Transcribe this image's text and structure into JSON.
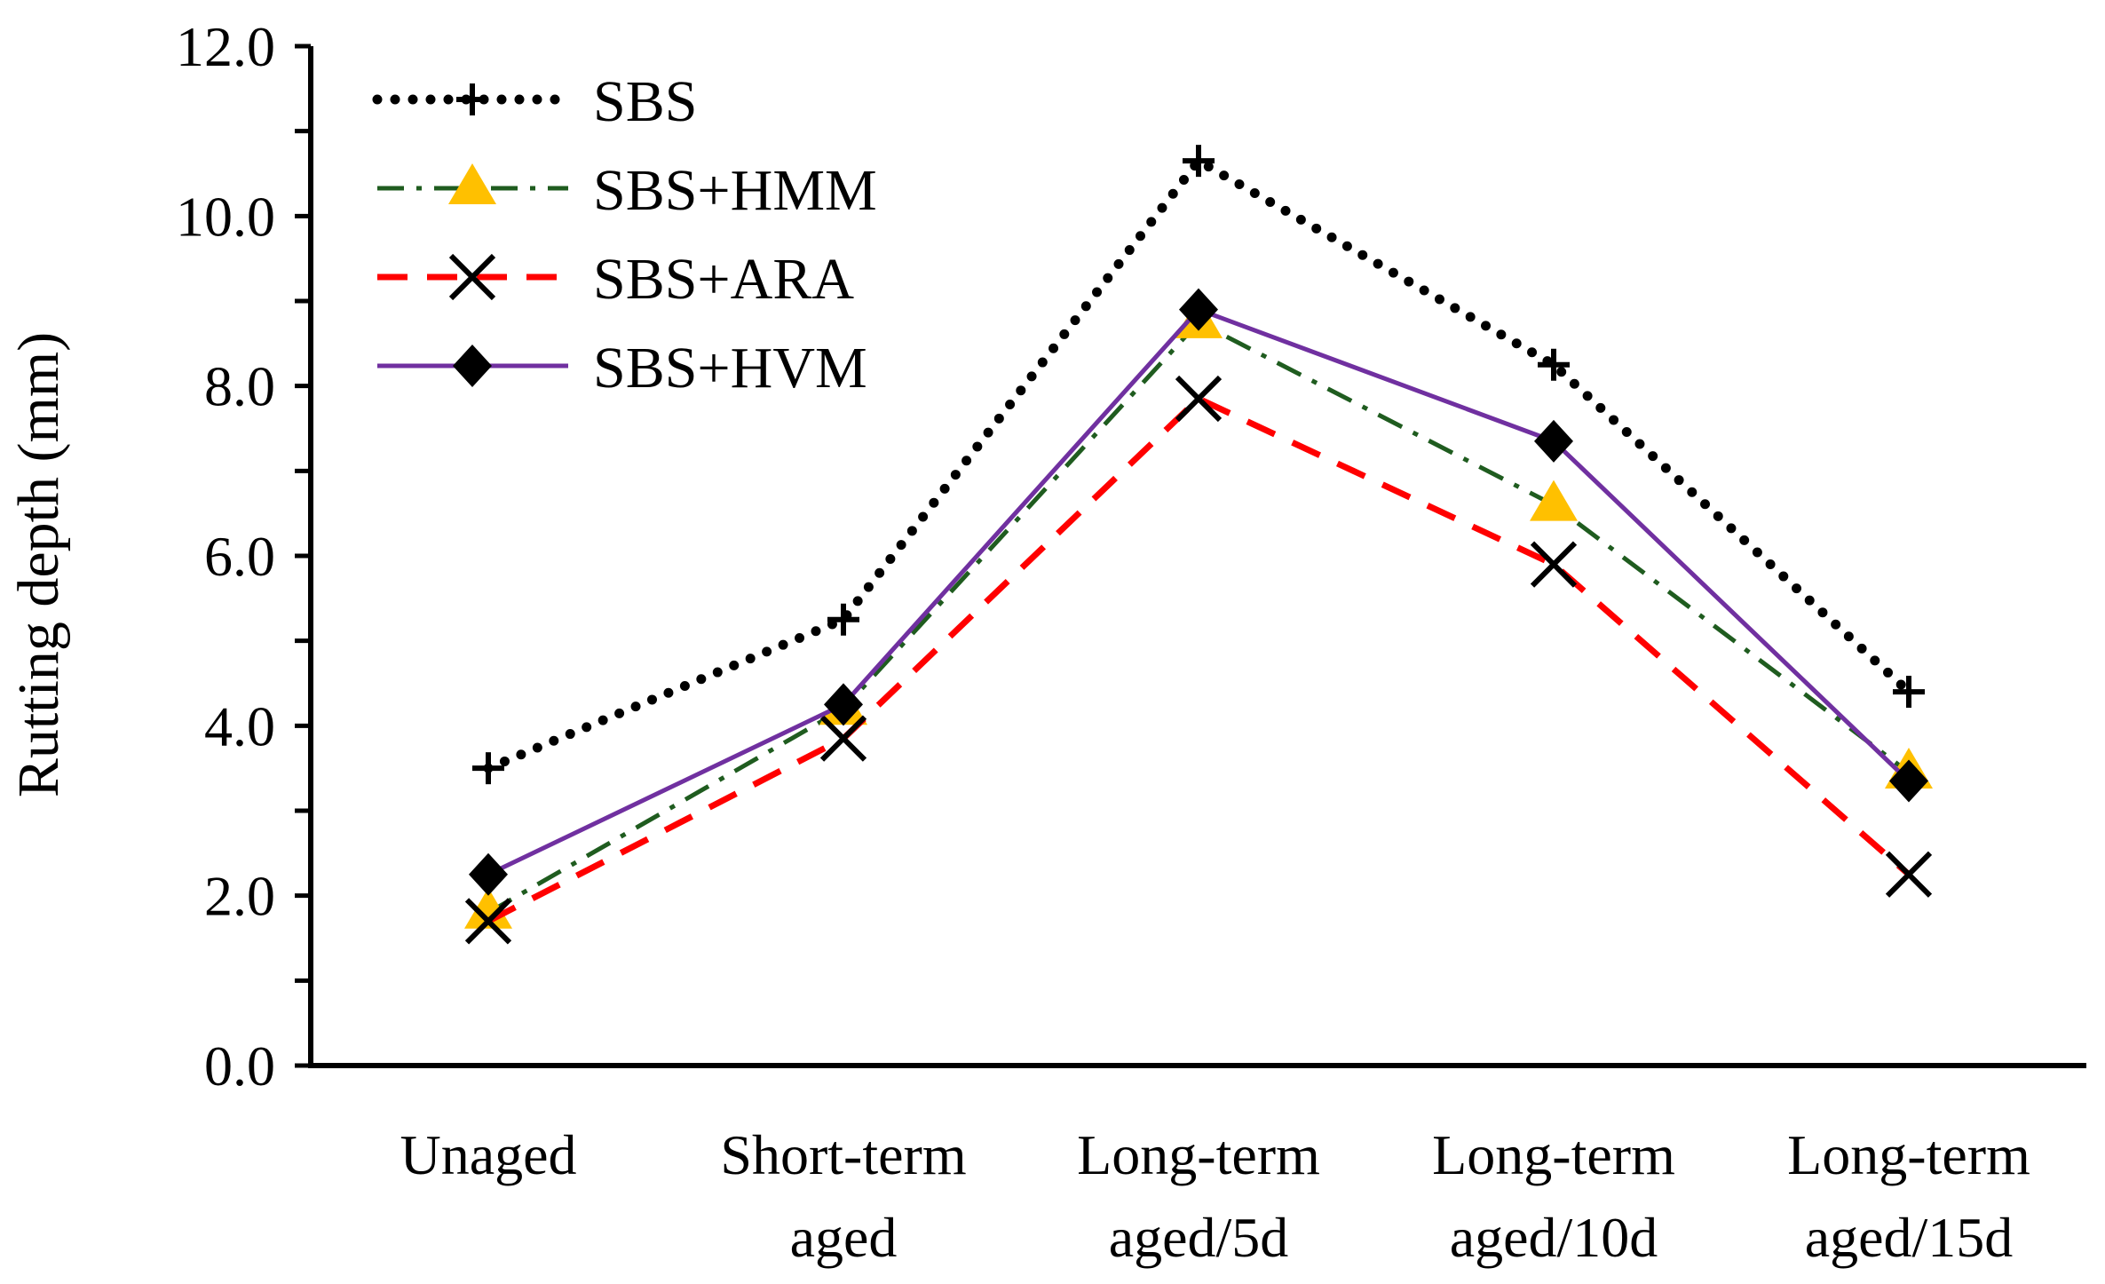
{
  "chart_data": {
    "type": "line",
    "title": "",
    "xlabel": "",
    "ylabel": "Rutting depth (mm)",
    "ylim": [
      0,
      12
    ],
    "y_major_step": 2,
    "y_minor_step": 1,
    "y_tick_labels": [
      "0.0",
      "2.0",
      "4.0",
      "6.0",
      "8.0",
      "10.0",
      "12.0"
    ],
    "grid": false,
    "legend_position": "top-left",
    "categories": [
      [
        "Unaged"
      ],
      [
        "Short-term",
        "aged"
      ],
      [
        "Long-term",
        "aged/5d"
      ],
      [
        "Long-term",
        "aged/10d"
      ],
      [
        "Long-term",
        "aged/15d"
      ]
    ],
    "series": [
      {
        "name": "SBS",
        "values": [
          3.5,
          5.25,
          10.65,
          8.25,
          4.4
        ],
        "color": "#000000",
        "marker": "plus",
        "line": "dotted"
      },
      {
        "name": "SBS+HMM",
        "values": [
          1.8,
          4.2,
          8.75,
          6.6,
          3.45
        ],
        "color": "#1f5c1f",
        "marker": "triangle",
        "marker_color": "#ffc000",
        "line": "dashdot"
      },
      {
        "name": "SBS+ARA",
        "values": [
          1.7,
          3.85,
          7.85,
          5.9,
          2.25
        ],
        "color": "#ff0000",
        "marker": "x",
        "marker_color": "#000000",
        "line": "dashed"
      },
      {
        "name": "SBS+HVM",
        "values": [
          2.25,
          4.25,
          8.9,
          7.35,
          3.35
        ],
        "color": "#7030a0",
        "marker": "diamond",
        "marker_color": "#000000",
        "line": "solid"
      }
    ]
  }
}
